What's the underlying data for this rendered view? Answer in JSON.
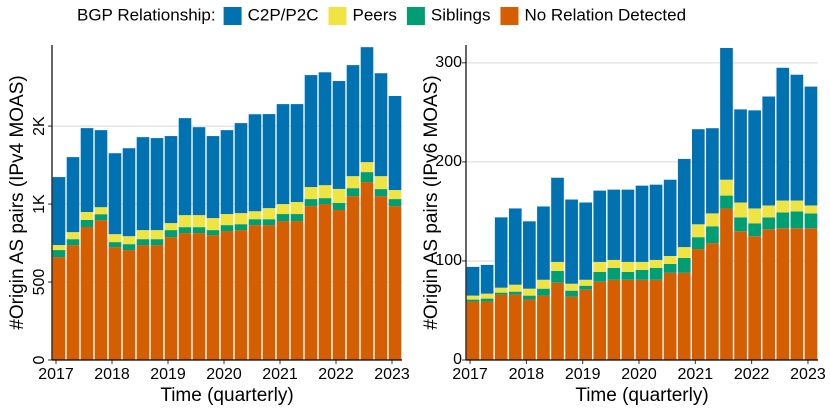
{
  "legend_title": "BGP Relationship:",
  "chart_data": [
    {
      "type": "bar",
      "stacked": true,
      "y_label": "#Origin AS pairs (IPv4 MOAS)",
      "x_label": "Time (quarterly)",
      "categories": [
        "2017",
        null,
        null,
        null,
        "2018",
        null,
        null,
        null,
        "2019",
        null,
        null,
        null,
        "2020",
        null,
        null,
        null,
        "2021",
        null,
        null,
        null,
        "2022",
        null,
        null,
        null,
        "2023"
      ],
      "series": [
        {
          "name": "C2P/P2C",
          "color": "#0072b2",
          "values": [
            436,
            481,
            538,
            494,
            519,
            564,
            596,
            590,
            558,
            622,
            564,
            526,
            538,
            577,
            622,
            603,
            641,
            628,
            718,
            724,
            692,
            712,
            737,
            660,
            603
          ]
        },
        {
          "name": "Peers",
          "color": "#f0e442",
          "values": [
            32,
            45,
            51,
            45,
            51,
            51,
            58,
            58,
            45,
            77,
            77,
            77,
            71,
            71,
            51,
            71,
            64,
            77,
            77,
            83,
            90,
            77,
            64,
            83,
            58
          ]
        },
        {
          "name": "Siblings",
          "color": "#009e73",
          "values": [
            45,
            38,
            45,
            38,
            32,
            38,
            38,
            38,
            45,
            38,
            38,
            32,
            38,
            38,
            38,
            38,
            45,
            45,
            45,
            38,
            45,
            51,
            64,
            45,
            45
          ]
        },
        {
          "name": "No Relation Detected",
          "color": "#d55e00",
          "values": [
            660,
            737,
            853,
            897,
            724,
            705,
            737,
            737,
            788,
            814,
            814,
            801,
            827,
            833,
            865,
            865,
            891,
            891,
            987,
            1000,
            962,
            1051,
            1141,
            1051,
            987
          ]
        }
      ],
      "ylim": [
        0,
        2020
      ],
      "yticks": [
        0,
        500,
        {
          "value": 1000,
          "label": "1K"
        },
        {
          "value": 1500,
          "label": "2K"
        }
      ],
      "grid": true
    },
    {
      "type": "bar",
      "stacked": true,
      "y_label": "#Origin AS pairs (IPv6 MOAS)",
      "x_label": "Time (quarterly)",
      "categories": [
        "2017",
        null,
        null,
        null,
        "2018",
        null,
        null,
        null,
        "2019",
        null,
        null,
        null,
        "2020",
        null,
        null,
        null,
        "2021",
        null,
        null,
        null,
        "2022",
        null,
        null,
        null,
        "2023"
      ],
      "series": [
        {
          "name": "C2P/P2C",
          "color": "#0072b2",
          "values": [
            29,
            29,
            71,
            77,
            68,
            74,
            85,
            85,
            78,
            72,
            71,
            73,
            77,
            76,
            77,
            89,
            96,
            86,
            133,
            94,
            99,
            110,
            134,
            127,
            120
          ]
        },
        {
          "name": "Peers",
          "color": "#f0e442",
          "values": [
            4,
            5,
            5,
            7,
            7,
            9,
            9,
            7,
            6,
            10,
            8,
            10,
            8,
            8,
            8,
            11,
            13,
            13,
            16,
            15,
            15,
            12,
            12,
            11,
            8
          ]
        },
        {
          "name": "Siblings",
          "color": "#009e73",
          "values": [
            2,
            3,
            2,
            3,
            4,
            7,
            12,
            6,
            4,
            10,
            12,
            8,
            10,
            12,
            9,
            15,
            12,
            17,
            13,
            14,
            13,
            12,
            16,
            17,
            15
          ]
        },
        {
          "name": "No Relation Detected",
          "color": "#d55e00",
          "values": [
            59,
            59,
            66,
            66,
            61,
            65,
            78,
            64,
            71,
            79,
            81,
            81,
            81,
            81,
            88,
            88,
            112,
            118,
            153,
            130,
            125,
            132,
            133,
            133,
            133
          ]
        }
      ],
      "ylim": [
        0,
        318
      ],
      "yticks": [
        0,
        100,
        200,
        300
      ],
      "grid": true
    }
  ]
}
